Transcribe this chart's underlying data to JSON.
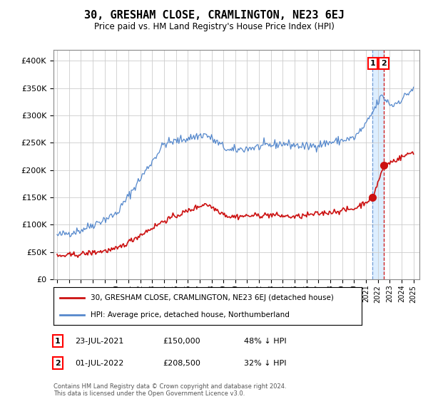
{
  "title": "30, GRESHAM CLOSE, CRAMLINGTON, NE23 6EJ",
  "subtitle": "Price paid vs. HM Land Registry's House Price Index (HPI)",
  "legend_line1": "30, GRESHAM CLOSE, CRAMLINGTON, NE23 6EJ (detached house)",
  "legend_line2": "HPI: Average price, detached house, Northumberland",
  "table_row1": [
    "1",
    "23-JUL-2021",
    "£150,000",
    "48% ↓ HPI"
  ],
  "table_row2": [
    "2",
    "01-JUL-2022",
    "£208,500",
    "32% ↓ HPI"
  ],
  "footer": "Contains HM Land Registry data © Crown copyright and database right 2024.\nThis data is licensed under the Open Government Licence v3.0.",
  "hpi_color": "#5588cc",
  "property_color": "#cc1111",
  "shade_color": "#ddeeff",
  "sale1_date": 2021.55,
  "sale1_price": 150000,
  "sale2_date": 2022.5,
  "sale2_price": 208500,
  "ylim": [
    0,
    420000
  ],
  "xlim_start": 1994.7,
  "xlim_end": 2025.5,
  "background_color": "#ffffff",
  "grid_color": "#cccccc"
}
